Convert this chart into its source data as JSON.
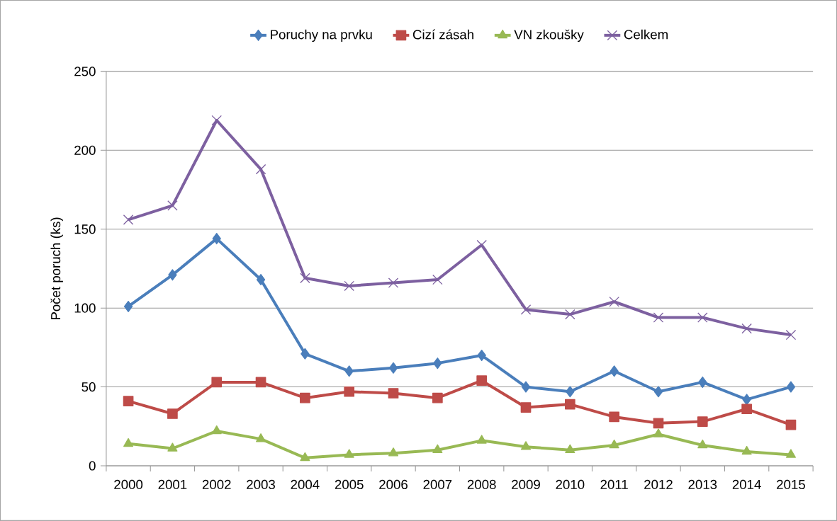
{
  "chart_data": {
    "type": "line",
    "ylabel": "Počet poruch (ks)",
    "categories": [
      "2000",
      "2001",
      "2002",
      "2003",
      "2004",
      "2005",
      "2006",
      "2007",
      "2008",
      "2009",
      "2010",
      "2011",
      "2012",
      "2013",
      "2014",
      "2015"
    ],
    "series": [
      {
        "name": "Poruchy na prvku",
        "color": "#4a7ebb",
        "marker": "diamond",
        "values": [
          101,
          121,
          144,
          118,
          71,
          60,
          62,
          65,
          70,
          50,
          47,
          60,
          47,
          53,
          42,
          50
        ]
      },
      {
        "name": "Cizí zásah",
        "color": "#be4b48",
        "marker": "square",
        "values": [
          41,
          33,
          53,
          53,
          43,
          47,
          46,
          43,
          54,
          37,
          39,
          31,
          27,
          28,
          36,
          26
        ]
      },
      {
        "name": "VN zkoušky",
        "color": "#98b954",
        "marker": "triangle",
        "values": [
          14,
          11,
          22,
          17,
          5,
          7,
          8,
          10,
          16,
          12,
          10,
          13,
          20,
          13,
          9,
          7
        ]
      },
      {
        "name": "Celkem",
        "color": "#7d60a0",
        "marker": "cross",
        "values": [
          156,
          165,
          219,
          188,
          119,
          114,
          116,
          118,
          140,
          99,
          96,
          104,
          94,
          94,
          87,
          83
        ]
      }
    ],
    "ylim": [
      0,
      250
    ],
    "yticks": [
      0,
      50,
      100,
      150,
      200,
      250
    ],
    "grid": "y",
    "legend": "top",
    "line_style": "solid"
  }
}
